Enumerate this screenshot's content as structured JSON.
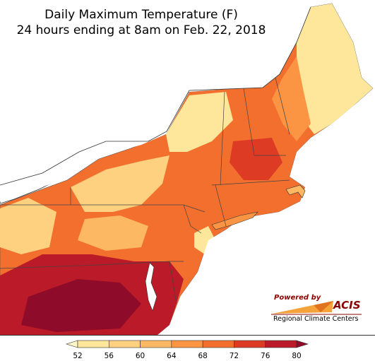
{
  "title": {
    "line1": "Daily Maximum Temperature (F)",
    "line2": "24 hours ending at 8am on Feb. 22, 2018"
  },
  "logo": {
    "powered_by": "Powered by",
    "name": "ACIS",
    "org": "Regional Climate Centers"
  },
  "legend": {
    "ticks": [
      "52",
      "56",
      "60",
      "64",
      "68",
      "72",
      "76",
      "80"
    ],
    "colors": [
      "#fef5c8",
      "#fee79b",
      "#fdd17f",
      "#fdb863",
      "#fc9543",
      "#f36f2d",
      "#dd3b24",
      "#bb1a28",
      "#8f0b2a"
    ]
  },
  "map": {
    "water_color": "#ffffff",
    "region": "Northeast United States"
  }
}
